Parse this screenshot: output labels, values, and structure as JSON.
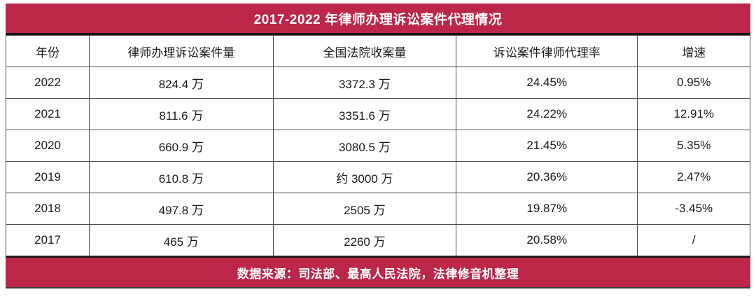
{
  "colors": {
    "accent": "#BB2649",
    "border": "#4a4a4a",
    "text": "#1a1a1a",
    "separator": "#141414",
    "title_text": "#ffffff"
  },
  "chart_data": {
    "type": "table",
    "title": "2017-2022 年律师办理诉讼案件代理情况",
    "columns": [
      "年份",
      "律师办理诉讼案件量",
      "全国法院收案量",
      "诉讼案件律师代理率",
      "增速"
    ],
    "rows": [
      [
        "2022",
        "824.4 万",
        "3372.3 万",
        "24.45%",
        "0.95%"
      ],
      [
        "2021",
        "811.6 万",
        "3351.6 万",
        "24.22%",
        "12.91%"
      ],
      [
        "2020",
        "660.9 万",
        "3080.5 万",
        "21.45%",
        "5.35%"
      ],
      [
        "2019",
        "610.8 万",
        "约 3000 万",
        "20.36%",
        "2.47%"
      ],
      [
        "2018",
        "497.8 万",
        "2505 万",
        "19.87%",
        "-3.45%"
      ],
      [
        "2017",
        "465 万",
        "2260 万",
        "20.58%",
        "/"
      ]
    ],
    "source_note": "数据来源：司法部、最高人民法院，法律修音机整理",
    "layout": {
      "header_position": "top-banner",
      "source_position": "bottom-banner",
      "grid": true
    }
  }
}
